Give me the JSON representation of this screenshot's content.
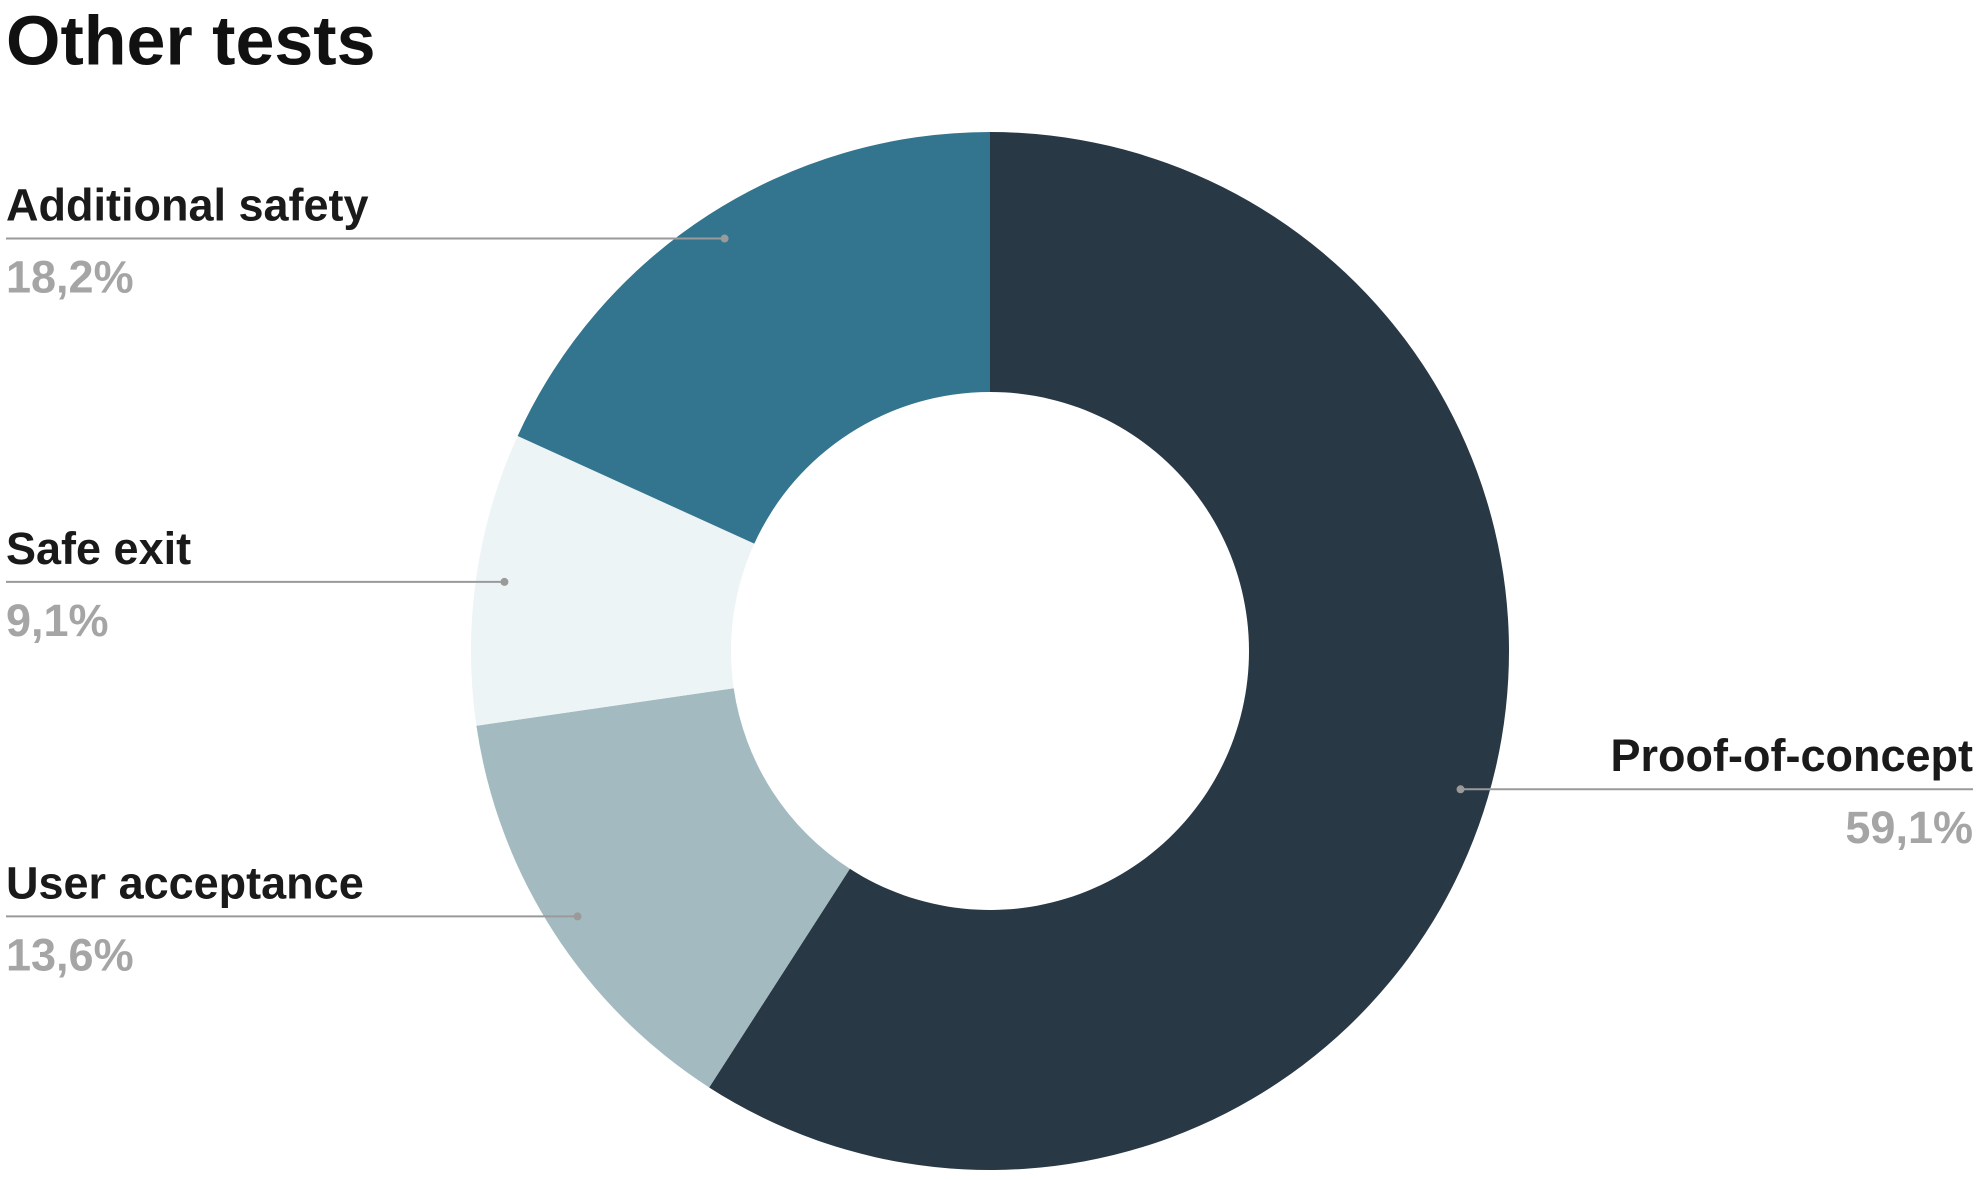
{
  "chart_data": {
    "type": "pie",
    "title": "Other tests",
    "categories": [
      "Proof-of-concept",
      "User acceptance",
      "Safe exit",
      "Additional safety"
    ],
    "values": [
      59.1,
      13.6,
      9.1,
      18.2
    ],
    "value_labels": [
      "59,1%",
      "13,6%",
      "9,1%",
      "18,2%"
    ],
    "colors": [
      "#283845",
      "#a3bbc0",
      "#ecf4f6",
      "#33748e"
    ]
  }
}
